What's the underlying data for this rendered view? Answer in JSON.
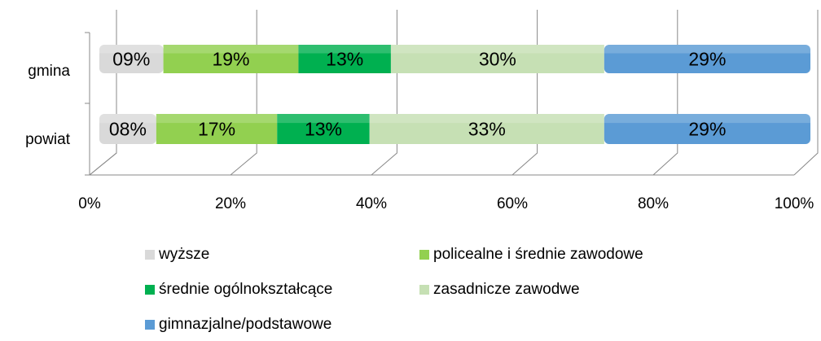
{
  "chart_data": {
    "type": "bar",
    "orientation": "horizontal",
    "stacked": true,
    "categories": [
      "gmina",
      "powiat"
    ],
    "series": [
      {
        "name": "wyższe",
        "color": "#d9d9d9",
        "values": [
          9,
          8
        ],
        "value_labels": [
          "09%",
          "08%"
        ]
      },
      {
        "name": "policealne i średnie zawodowe",
        "color": "#92d050",
        "values": [
          19,
          17
        ],
        "value_labels": [
          "19%",
          "17%"
        ]
      },
      {
        "name": "średnie ogólnokształcące",
        "color": "#00b050",
        "values": [
          13,
          13
        ],
        "value_labels": [
          "13%",
          "13%"
        ]
      },
      {
        "name": "zasadnicze zawodwe",
        "color": "#c6e0b4",
        "values": [
          30,
          33
        ],
        "value_labels": [
          "30%",
          "33%"
        ]
      },
      {
        "name": "gimnazjalne/podstawowe",
        "color": "#5b9bd5",
        "values": [
          29,
          29
        ],
        "value_labels": [
          "29%",
          "29%"
        ]
      }
    ],
    "xlim": [
      0,
      100
    ],
    "xticks": [
      {
        "value": 0,
        "label": "0%"
      },
      {
        "value": 20,
        "label": "20%"
      },
      {
        "value": 40,
        "label": "40%"
      },
      {
        "value": 60,
        "label": "60%"
      },
      {
        "value": 80,
        "label": "80%"
      },
      {
        "value": 100,
        "label": "100%"
      }
    ],
    "grid": true,
    "legend": "bottom"
  }
}
